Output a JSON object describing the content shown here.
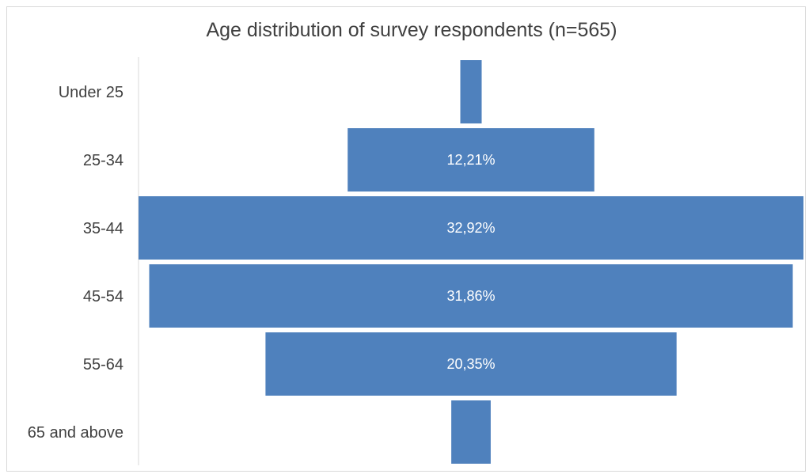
{
  "chart_data": {
    "type": "bar",
    "orientation": "horizontal-centered-funnel",
    "title": "Age distribution of survey respondents (n=565)",
    "categories": [
      "Under 25",
      "25-34",
      "35-44",
      "45-54",
      "55-64",
      "65 and above"
    ],
    "values": [
      1.06,
      12.21,
      32.92,
      31.86,
      20.35,
      1.95
    ],
    "data_labels": [
      "",
      "12,21%",
      "32,92%",
      "31,86%",
      "20,35%",
      ""
    ],
    "bar_color": "#4f81bd",
    "grid": false,
    "legend": "none"
  }
}
